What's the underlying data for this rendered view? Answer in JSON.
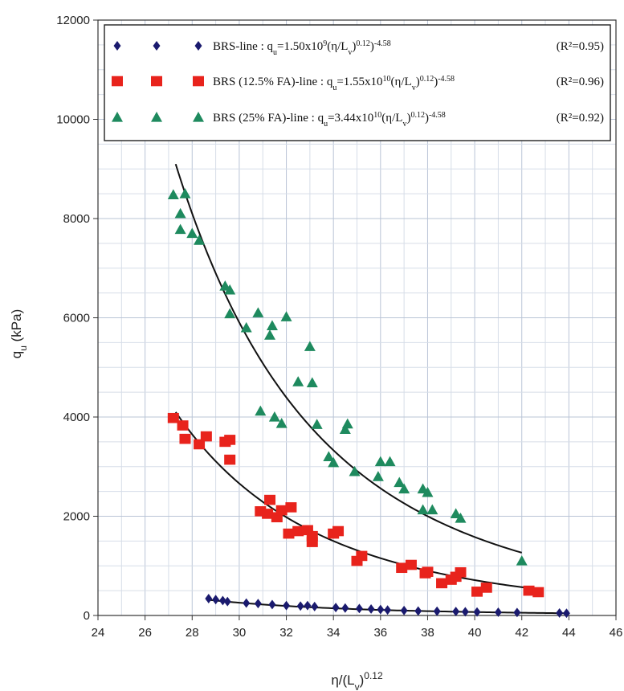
{
  "chart_data": {
    "type": "scatter",
    "xlabel": "η/(Lv)^0.12",
    "ylabel": "qu (kPa)",
    "xlim": [
      24,
      46
    ],
    "ylim": [
      0,
      12000
    ],
    "x_ticks": [
      24,
      26,
      28,
      30,
      32,
      34,
      36,
      38,
      40,
      42,
      44,
      46
    ],
    "y_ticks": [
      0,
      2000,
      4000,
      6000,
      8000,
      10000,
      12000
    ],
    "grid": true,
    "legend_position": "top",
    "series": [
      {
        "name": "BRS-line",
        "marker": "diamond",
        "color": "#1a1a6e",
        "equation_text": "BRS-line : qu=1.50x10^9(η/Lv)^0.12)^-4.58",
        "r2_text": "(R²=0.95)",
        "fit": {
          "a": 1500000000.0,
          "b": -4.58,
          "x_range": [
            28.6,
            43.8
          ]
        },
        "points": [
          [
            28.7,
            340
          ],
          [
            29.0,
            320
          ],
          [
            29.3,
            300
          ],
          [
            29.5,
            280
          ],
          [
            30.3,
            250
          ],
          [
            30.8,
            240
          ],
          [
            31.4,
            220
          ],
          [
            32.0,
            200
          ],
          [
            32.6,
            190
          ],
          [
            32.9,
            200
          ],
          [
            33.2,
            180
          ],
          [
            34.1,
            160
          ],
          [
            34.5,
            150
          ],
          [
            35.1,
            140
          ],
          [
            35.6,
            130
          ],
          [
            36.0,
            120
          ],
          [
            36.3,
            110
          ],
          [
            37.0,
            100
          ],
          [
            37.6,
            90
          ],
          [
            38.4,
            85
          ],
          [
            39.2,
            80
          ],
          [
            39.6,
            75
          ],
          [
            40.1,
            70
          ],
          [
            41.0,
            65
          ],
          [
            41.8,
            60
          ],
          [
            43.6,
            50
          ],
          [
            43.9,
            45
          ]
        ]
      },
      {
        "name": "BRS (12.5% FA)-line",
        "marker": "square",
        "color": "#e8231c",
        "equation_text": "BRS (12.5% FA)-line : qu=1.55x10^10(η/Lv)^0.12)^-4.58",
        "r2_text": "(R²=0.96)",
        "fit": {
          "a": 15500000000.0,
          "b": -4.58,
          "x_range": [
            27.3,
            42.6
          ]
        },
        "points": [
          [
            27.2,
            3980
          ],
          [
            27.6,
            3830
          ],
          [
            27.7,
            3560
          ],
          [
            28.3,
            3450
          ],
          [
            28.6,
            3610
          ],
          [
            29.4,
            3500
          ],
          [
            29.6,
            3540
          ],
          [
            29.6,
            3140
          ],
          [
            30.9,
            2100
          ],
          [
            31.2,
            2050
          ],
          [
            31.3,
            2330
          ],
          [
            31.6,
            1980
          ],
          [
            31.8,
            2120
          ],
          [
            32.2,
            2180
          ],
          [
            32.1,
            1650
          ],
          [
            32.5,
            1700
          ],
          [
            32.9,
            1720
          ],
          [
            33.1,
            1480
          ],
          [
            33.1,
            1600
          ],
          [
            34.0,
            1650
          ],
          [
            34.2,
            1700
          ],
          [
            35.0,
            1100
          ],
          [
            35.2,
            1200
          ],
          [
            36.9,
            960
          ],
          [
            37.3,
            1020
          ],
          [
            37.9,
            850
          ],
          [
            38.0,
            880
          ],
          [
            38.6,
            650
          ],
          [
            39.0,
            720
          ],
          [
            39.2,
            780
          ],
          [
            39.4,
            870
          ],
          [
            40.1,
            480
          ],
          [
            40.5,
            560
          ],
          [
            42.3,
            500
          ],
          [
            42.7,
            470
          ]
        ]
      },
      {
        "name": "BRS (25% FA)-line",
        "marker": "triangle",
        "color": "#1e8a5e",
        "equation_text": "BRS (25% FA)-line : qu=3.44x10^10(η/Lv)^0.12)^-4.58",
        "r2_text": "(R²=0.92)",
        "fit": {
          "a": 34400000000.0,
          "b": -4.58,
          "x_range": [
            27.3,
            42.0
          ]
        },
        "points": [
          [
            27.2,
            8480
          ],
          [
            27.5,
            8100
          ],
          [
            27.5,
            7780
          ],
          [
            27.7,
            8500
          ],
          [
            28.0,
            7700
          ],
          [
            28.3,
            7560
          ],
          [
            29.4,
            6640
          ],
          [
            29.6,
            6560
          ],
          [
            29.6,
            6080
          ],
          [
            30.3,
            5800
          ],
          [
            30.8,
            6100
          ],
          [
            30.9,
            4120
          ],
          [
            31.3,
            5650
          ],
          [
            31.4,
            5840
          ],
          [
            31.5,
            4000
          ],
          [
            31.8,
            3870
          ],
          [
            32.0,
            6020
          ],
          [
            32.5,
            4710
          ],
          [
            33.1,
            4690
          ],
          [
            33.0,
            5420
          ],
          [
            33.3,
            3850
          ],
          [
            33.8,
            3200
          ],
          [
            34.0,
            3080
          ],
          [
            34.5,
            3750
          ],
          [
            34.6,
            3860
          ],
          [
            34.9,
            2900
          ],
          [
            35.9,
            2800
          ],
          [
            36.0,
            3100
          ],
          [
            36.4,
            3100
          ],
          [
            36.8,
            2680
          ],
          [
            37.0,
            2550
          ],
          [
            37.8,
            2550
          ],
          [
            38.0,
            2480
          ],
          [
            37.8,
            2130
          ],
          [
            38.2,
            2130
          ],
          [
            39.2,
            2050
          ],
          [
            39.4,
            1960
          ],
          [
            42.0,
            1100
          ]
        ]
      }
    ]
  }
}
